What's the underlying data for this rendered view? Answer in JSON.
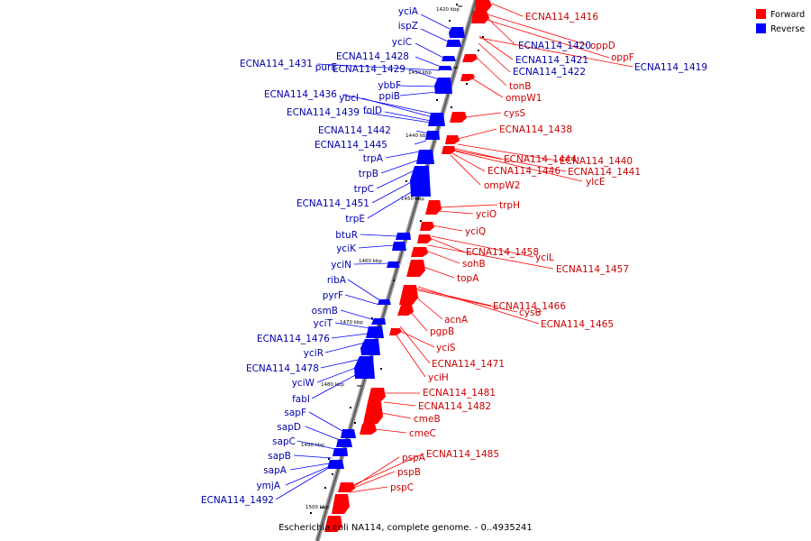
{
  "caption": "Escherichia coli NA114, complete genome. - 0..4935241",
  "legend": {
    "forward": {
      "label": "Forward",
      "color": "#ff0000"
    },
    "reverse": {
      "label": "Reverse",
      "color": "#0000ff"
    }
  },
  "ticks": [
    "1420 kbp",
    "1430 kbp",
    "1440 kbp",
    "1450 kbp",
    "1460 kbp",
    "1470 kbp",
    "1480 kbp",
    "1490 kbp",
    "1500 kbp"
  ],
  "reverse_genes": [
    "yciA",
    "ispZ",
    "yciC",
    "ECNA114_1428",
    "ECNA114_1431",
    "purE",
    "ECNA114_1429",
    "ybbF",
    "ppiB",
    "ECNA114_1436",
    "ybcI",
    "ECNA114_1439",
    "folD",
    "ECNA114_1442",
    "ECNA114_1445",
    "trpA",
    "trpB",
    "trpC",
    "ECNA114_1451",
    "trpE",
    "btuR",
    "yciK",
    "yciN",
    "ribA",
    "pyrF",
    "osmB",
    "yciT",
    "ECNA114_1476",
    "yciR",
    "ECNA114_1478",
    "yciW",
    "fabI",
    "sapF",
    "sapD",
    "sapC",
    "sapB",
    "sapA",
    "ymjA",
    "ECNA114_1492"
  ],
  "forward_genes": [
    "ECNA114_1416",
    "oppD",
    "ECNA114_1420",
    "oppF",
    "ECNA114_1421",
    "ECNA114_1419",
    "ECNA114_1422",
    "tonB",
    "ompW1",
    "cysS",
    "ECNA114_1438",
    "ECNA114_1444",
    "ECNA114_1440",
    "ECNA114_1446",
    "ECNA114_1441",
    "ylcE",
    "ompW2",
    "trpH",
    "yciO",
    "yciQ",
    "ECNA114_1458",
    "yciL",
    "sohB",
    "ECNA114_1457",
    "topA",
    "ECNA114_1466",
    "cysB",
    "acnA",
    "ECNA114_1465",
    "pgpB",
    "yciS",
    "ECNA114_1471",
    "yciH",
    "ECNA114_1481",
    "ECNA114_1482",
    "cmeB",
    "cmeC",
    "ECNA114_1485",
    "pspA",
    "pspB",
    "pspC"
  ]
}
